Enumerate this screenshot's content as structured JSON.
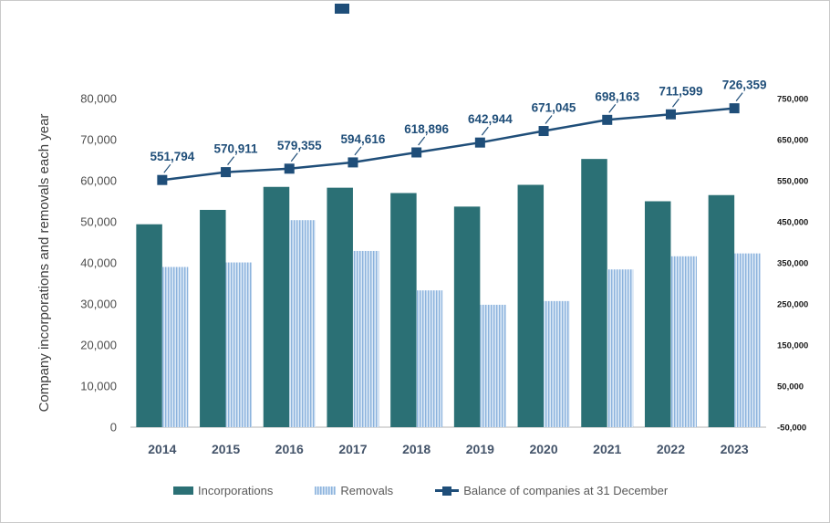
{
  "chart_data": {
    "type": "bar",
    "subtype": "grouped-bars-with-line",
    "title": "",
    "categories": [
      "2014",
      "2015",
      "2016",
      "2017",
      "2018",
      "2019",
      "2020",
      "2021",
      "2022",
      "2023"
    ],
    "series": [
      {
        "name": "Incorporations",
        "type": "bar",
        "axis": "left",
        "values": [
          49400,
          52900,
          58500,
          58300,
          57000,
          53700,
          59000,
          65300,
          55000,
          56500
        ]
      },
      {
        "name": "Removals",
        "type": "bar",
        "axis": "left",
        "values": [
          39000,
          40100,
          50400,
          42900,
          33300,
          29800,
          30700,
          38400,
          41600,
          42300
        ]
      },
      {
        "name": "Balance of companies at 31 December",
        "type": "line",
        "axis": "right",
        "values": [
          551794,
          570911,
          579355,
          594616,
          618896,
          642944,
          671045,
          698163,
          711599,
          726359
        ],
        "data_labels": [
          "551,794",
          "570,911",
          "579,355",
          "594,616",
          "618,896",
          "642,944",
          "671,045",
          "698,163",
          "711,599",
          "726,359"
        ]
      }
    ],
    "left_axis": {
      "title": "Company incorporations and removals each year",
      "min": 0,
      "max": 80000,
      "tick_values": [
        0,
        10000,
        20000,
        30000,
        40000,
        50000,
        60000,
        70000,
        80000
      ],
      "tick_labels": [
        "0",
        "10,000",
        "20,000",
        "30,000",
        "40,000",
        "50,000",
        "60,000",
        "70,000",
        "80,000"
      ]
    },
    "right_axis": {
      "title": "",
      "min": -50000,
      "max": 750000,
      "tick_values": [
        -50000,
        50000,
        150000,
        250000,
        350000,
        450000,
        550000,
        650000,
        750000
      ],
      "tick_labels": [
        "-50,000",
        "50,000",
        "150,000",
        "250,000",
        "350,000",
        "450,000",
        "550,000",
        "650,000",
        "750,000"
      ]
    },
    "grid": "off",
    "legend_position": "bottom",
    "legend": [
      {
        "label": "Incorporations",
        "swatch": "teal-bar"
      },
      {
        "label": "Removals",
        "swatch": "striped-bar"
      },
      {
        "label": "Balance of companies at 31 December",
        "swatch": "navy-line-marker"
      }
    ]
  },
  "colors": {
    "incorporations": "#2b7075",
    "removals_stripe": "#8cb3dd",
    "removals_background": "#dce9f6",
    "balance_line": "#1f4e79",
    "data_label": "#1f4e79",
    "axis_line": "#d9d9d9",
    "top_square": "#1f4e79"
  },
  "decorations": {
    "top_square": true
  }
}
